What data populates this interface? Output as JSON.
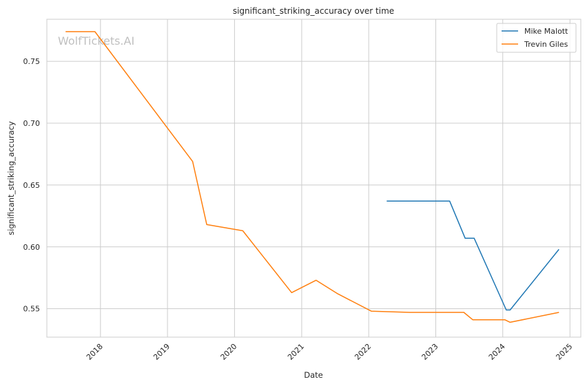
{
  "chart_data": {
    "type": "line",
    "title": "significant_striking_accuracy over time",
    "xlabel": "Date",
    "ylabel": "significant_striking_accuracy",
    "watermark": "WolfTickets.AI",
    "x_ticks": [
      "2018",
      "2019",
      "2020",
      "2021",
      "2022",
      "2023",
      "2024",
      "2025"
    ],
    "y_ticks": [
      "0.55",
      "0.60",
      "0.65",
      "0.70",
      "0.75"
    ],
    "y_tick_values": [
      0.55,
      0.6,
      0.65,
      0.7,
      0.75
    ],
    "xlim": [
      "2017-03-15",
      "2025-03-01"
    ],
    "ylim": [
      0.527,
      0.784
    ],
    "grid": true,
    "legend_position": "top-right",
    "series": [
      {
        "name": "Mike Malott",
        "color": "#1f77b4",
        "points": [
          [
            "2022-04-09",
            0.637
          ],
          [
            "2023-03-18",
            0.637
          ],
          [
            "2023-06-10",
            0.607
          ],
          [
            "2023-07-29",
            0.607
          ],
          [
            "2024-01-20",
            0.549
          ],
          [
            "2024-02-10",
            0.549
          ],
          [
            "2024-11-02",
            0.598
          ]
        ]
      },
      {
        "name": "Trevin Giles",
        "color": "#ff7f0e",
        "points": [
          [
            "2017-06-25",
            0.774
          ],
          [
            "2017-12-02",
            0.774
          ],
          [
            "2019-05-18",
            0.669
          ],
          [
            "2019-08-03",
            0.618
          ],
          [
            "2020-02-15",
            0.613
          ],
          [
            "2020-11-07",
            0.563
          ],
          [
            "2021-03-20",
            0.573
          ],
          [
            "2021-07-17",
            0.562
          ],
          [
            "2022-01-15",
            0.548
          ],
          [
            "2022-08-13",
            0.547
          ],
          [
            "2023-02-25",
            0.547
          ],
          [
            "2023-03-25",
            0.547
          ],
          [
            "2023-06-03",
            0.547
          ],
          [
            "2023-07-22",
            0.541
          ],
          [
            "2024-01-13",
            0.541
          ],
          [
            "2024-02-10",
            0.539
          ],
          [
            "2024-11-02",
            0.547
          ]
        ]
      }
    ]
  }
}
